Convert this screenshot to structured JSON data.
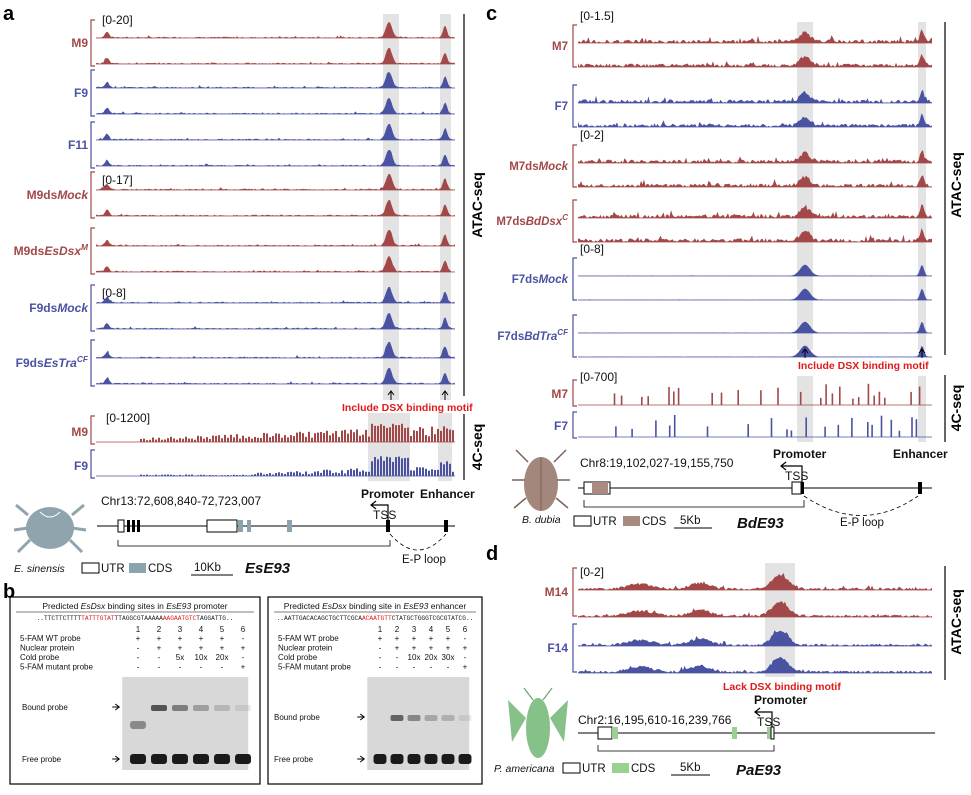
{
  "panels": {
    "a": {
      "label": "a",
      "atac_ranges": [
        "[0-20]",
        "[0-17]",
        "[0-8]"
      ],
      "atac_tracks": [
        {
          "name": "M9",
          "italic": "",
          "sup": "",
          "color": "red"
        },
        {
          "name": "F9",
          "italic": "",
          "sup": "",
          "color": "blue"
        },
        {
          "name": "F11",
          "italic": "",
          "sup": "",
          "color": "blue"
        },
        {
          "name": "M9ds",
          "italic": "Mock",
          "sup": "",
          "color": "red"
        },
        {
          "name": "M9ds",
          "italic": "EsDsx",
          "sup": "M",
          "color": "red"
        },
        {
          "name": "F9ds",
          "italic": "Mock",
          "sup": "",
          "color": "blue"
        },
        {
          "name": "F9ds",
          "italic": "EsTra",
          "sup": "CF",
          "color": "blue"
        }
      ],
      "atac_label": "ATAC-seq",
      "motif_text": "Include DSX binding motif",
      "c4_range": "[0-1200]",
      "c4_tracks": [
        {
          "name": "M9",
          "color": "red"
        },
        {
          "name": "F9",
          "color": "blue"
        }
      ],
      "c4_label": "4C-seq",
      "promoter": "Promoter",
      "enhancer": "Enhancer",
      "coord": "Chr13:72,608,840-72,723,007",
      "tss": "TSS",
      "ep_loop": "E-P loop",
      "species": "E. sinensis",
      "legend_utr": "UTR",
      "legend_cds": "CDS",
      "scale": "10Kb",
      "gene": "EsE93",
      "cds_color": "#8aa3ad",
      "bug_color": "#8fa4ad"
    },
    "b": {
      "label": "b",
      "gels": [
        {
          "title_pre": "Predicted ",
          "title_italic1": "EsDsx",
          "title_mid": " binding sites in ",
          "title_italic2": "EsE93",
          "title_post": " promoter",
          "seq_a": "..TTCTTCTTTT",
          "seq_red1": "TATTTGTAT",
          "seq_b": "TTAGGCGTAAAAA",
          "seq_red2": "AAGAATGTC",
          "seq_c": "TAGGATTG..",
          "lanes": [
            "1",
            "2",
            "3",
            "4",
            "5",
            "6"
          ],
          "rows": [
            {
              "label": "5-FAM WT probe",
              "vals": [
                "+",
                "+",
                "+",
                "+",
                "+",
                "-"
              ]
            },
            {
              "label": "Nuclear protein",
              "vals": [
                "-",
                "+",
                "+",
                "+",
                "+",
                "+"
              ]
            },
            {
              "label": "Cold probe",
              "vals": [
                "-",
                "-",
                "5x",
                "10x",
                "20x",
                "-"
              ]
            },
            {
              "label": "5-FAM mutant probe",
              "vals": [
                "-",
                "-",
                "-",
                "-",
                "-",
                "+"
              ]
            }
          ],
          "bound": "Bound probe",
          "free": "Free probe"
        },
        {
          "title_pre": "Predicted ",
          "title_italic1": "EsDsx",
          "title_mid": " binding site in ",
          "title_italic2": "EsE93",
          "title_post": " enhancer",
          "seq_a": "..AATTGACACAGCTGCTTCGCA",
          "seq_red1": "ACAATGTT",
          "seq_b": "CTATGCTGGGTCGCGTATCG..",
          "seq_red2": "",
          "seq_c": "",
          "lanes": [
            "1",
            "2",
            "3",
            "4",
            "5",
            "6"
          ],
          "rows": [
            {
              "label": "5-FAM WT probe",
              "vals": [
                "+",
                "+",
                "+",
                "+",
                "+",
                "-"
              ]
            },
            {
              "label": "Nuclear protein",
              "vals": [
                "-",
                "+",
                "+",
                "+",
                "+",
                "+"
              ]
            },
            {
              "label": "Cold probe",
              "vals": [
                "-",
                "-",
                "10x",
                "20x",
                "30x",
                "-"
              ]
            },
            {
              "label": "5-FAM mutant probe",
              "vals": [
                "-",
                "-",
                "-",
                "-",
                "-",
                "+"
              ]
            }
          ],
          "bound": "Bound probe",
          "free": "Free probe"
        }
      ]
    },
    "c": {
      "label": "c",
      "atac_ranges": [
        "[0-1.5]",
        "[0-2]",
        "[0-8]"
      ],
      "atac_tracks": [
        {
          "name": "M7",
          "italic": "",
          "sup": "",
          "color": "red"
        },
        {
          "name": "F7",
          "italic": "",
          "sup": "",
          "color": "blue"
        },
        {
          "name": "M7ds",
          "italic": "Mock",
          "sup": "",
          "color": "red"
        },
        {
          "name": "M7ds",
          "italic": "BdDsx",
          "sup": "C",
          "color": "red"
        },
        {
          "name": "F7ds",
          "italic": "Mock",
          "sup": "",
          "color": "blue"
        },
        {
          "name": "F7ds",
          "italic": "BdTra",
          "sup": "CF",
          "color": "blue"
        }
      ],
      "atac_label": "ATAC-seq",
      "motif_text": "Include DSX binding motif",
      "c4_range": "[0-700]",
      "c4_tracks": [
        {
          "name": "M7",
          "color": "red"
        },
        {
          "name": "F7",
          "color": "blue"
        }
      ],
      "c4_label": "4C-seq",
      "promoter": "Promoter",
      "enhancer": "Enhancer",
      "coord": "Chr8:19,102,027-19,155,750",
      "tss": "TSS",
      "ep_loop": "E-P loop",
      "species": "B. dubia",
      "legend_utr": "UTR",
      "legend_cds": "CDS",
      "scale": "5Kb",
      "gene": "BdE93",
      "cds_color": "#a98a80",
      "bug_color": "#a4877c"
    },
    "d": {
      "label": "d",
      "atac_range": "[0-2]",
      "atac_tracks": [
        {
          "name": "M14",
          "color": "red"
        },
        {
          "name": "F14",
          "color": "blue"
        }
      ],
      "atac_label": "ATAC-seq",
      "motif_text": "Lack DSX binding motif",
      "promoter": "Promoter",
      "coord": "Chr2:16,195,610-16,239,766",
      "tss": "TSS",
      "species": "P. americana",
      "legend_utr": "UTR",
      "legend_cds": "CDS",
      "scale": "5Kb",
      "gene": "PaE93",
      "cds_color": "#9ccf94",
      "bug_color": "#86c18a"
    }
  },
  "colors": {
    "red": "#a24848",
    "blue": "#4a52a2",
    "highlight": "#e3e3e3",
    "motif": "#e01a1a"
  }
}
